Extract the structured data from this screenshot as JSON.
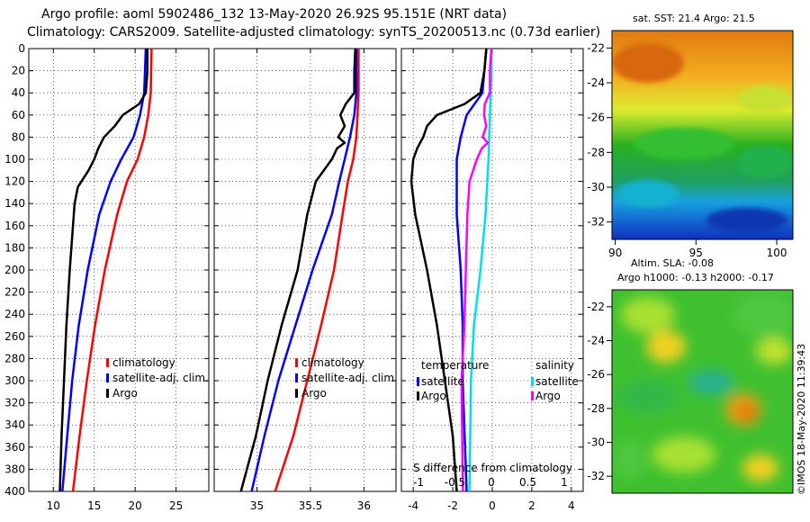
{
  "header": {
    "line1": "Argo profile: aoml 5902486_132 13-May-2020 26.92S 95.151E (NRT data)",
    "line2": "Climatology: CARS2009. Satellite-adjusted climatology: synTS_20200513.nc (0.73d earlier)"
  },
  "colors": {
    "climatology": "#ff0000",
    "satellite": "#0000ff",
    "argo": "#000000",
    "sal_satellite": "#00e0e0",
    "sal_argo": "#ff00ff"
  },
  "chart_data": [
    {
      "type": "line",
      "name": "temperature-profile",
      "xlim": [
        7,
        29
      ],
      "ylim": [
        0,
        400
      ],
      "y_inverted": true,
      "xticks": [
        10,
        15,
        20,
        25
      ],
      "yticks": [
        0,
        20,
        40,
        60,
        80,
        100,
        120,
        140,
        160,
        180,
        200,
        220,
        240,
        260,
        280,
        300,
        320,
        340,
        360,
        380,
        400
      ],
      "legend": [
        "climatology",
        "satellite-adj. clim.",
        "Argo"
      ],
      "series": [
        {
          "name": "climatology",
          "color": "#ff0000",
          "depth": [
            0,
            40,
            60,
            80,
            100,
            120,
            150,
            200,
            250,
            300,
            350,
            400
          ],
          "values": [
            22,
            21.9,
            21.6,
            21.1,
            20.3,
            19.0,
            17.8,
            16.3,
            15.1,
            14.1,
            13.2,
            12.4
          ]
        },
        {
          "name": "satellite-adj. clim.",
          "color": "#0000ff",
          "depth": [
            0,
            20,
            40,
            60,
            70,
            80,
            100,
            120,
            150,
            200,
            250,
            300,
            350,
            400
          ],
          "values": [
            21.3,
            21.2,
            21.1,
            20.6,
            20.2,
            19.8,
            18.3,
            17.0,
            15.6,
            14.2,
            13.1,
            12.3,
            11.7,
            11.1
          ]
        },
        {
          "name": "Argo",
          "color": "#000000",
          "depth": [
            0,
            20,
            40,
            50,
            60,
            70,
            80,
            90,
            100,
            110,
            125,
            140,
            160,
            200,
            250,
            300,
            350,
            400
          ],
          "values": [
            21.5,
            21.5,
            21.3,
            20.5,
            18.5,
            17.5,
            16.2,
            15.5,
            15.0,
            14.3,
            13.0,
            12.6,
            12.4,
            12.0,
            11.6,
            11.3,
            11.0,
            10.8
          ]
        }
      ]
    },
    {
      "type": "line",
      "name": "salinity-profile",
      "xlim": [
        34.6,
        36.3
      ],
      "ylim": [
        0,
        400
      ],
      "y_inverted": true,
      "xticks": [
        35,
        35.5,
        36
      ],
      "xtick_labels": [
        "35",
        "35.5",
        "36"
      ],
      "legend": [
        "climatology",
        "satellite-adj. clim.",
        "Argo"
      ],
      "series": [
        {
          "name": "climatology",
          "color": "#ff0000",
          "depth": [
            0,
            40,
            80,
            100,
            120,
            150,
            200,
            250,
            300,
            350,
            400
          ],
          "values": [
            35.95,
            35.95,
            35.93,
            35.9,
            35.85,
            35.8,
            35.72,
            35.6,
            35.47,
            35.34,
            35.17
          ]
        },
        {
          "name": "satellite-adj. clim.",
          "color": "#0000ff",
          "depth": [
            0,
            40,
            60,
            80,
            100,
            120,
            150,
            200,
            250,
            300,
            350,
            400
          ],
          "values": [
            35.93,
            35.93,
            35.91,
            35.87,
            35.82,
            35.77,
            35.7,
            35.52,
            35.36,
            35.2,
            35.07,
            34.95
          ]
        },
        {
          "name": "Argo",
          "color": "#000000",
          "depth": [
            0,
            20,
            40,
            50,
            60,
            70,
            80,
            85,
            90,
            100,
            120,
            150,
            200,
            250,
            300,
            350,
            400
          ],
          "values": [
            35.92,
            35.91,
            35.91,
            35.83,
            35.78,
            35.82,
            35.76,
            35.82,
            35.75,
            35.7,
            35.55,
            35.47,
            35.38,
            35.23,
            35.1,
            34.99,
            34.85
          ]
        }
      ]
    },
    {
      "type": "line",
      "name": "difference-from-climatology",
      "xlim": [
        -4.6,
        4.6
      ],
      "ylim": [
        0,
        400
      ],
      "y_inverted": true,
      "xticks": [
        -4,
        -2,
        0,
        2,
        4
      ],
      "secondary_xticks": [
        -1,
        -0.5,
        0,
        0.5,
        1
      ],
      "secondary_xtick_labels": [
        "-1",
        "-0.5",
        "0",
        "0.5",
        "1"
      ],
      "secondary_xlabel": "S difference from climatology",
      "legend_temperature_title": "temperature",
      "legend_salinity_title": "salinity",
      "series": [
        {
          "name": "temperature satellite",
          "color": "#0000ff",
          "depth": [
            0,
            20,
            40,
            60,
            80,
            100,
            150,
            200,
            250,
            300,
            350,
            400
          ],
          "values": [
            -0.3,
            -0.4,
            -0.5,
            -1.3,
            -1.6,
            -1.8,
            -1.8,
            -1.6,
            -1.5,
            -1.5,
            -1.4,
            -1.3
          ]
        },
        {
          "name": "temperature Argo",
          "color": "#000000",
          "depth": [
            0,
            20,
            40,
            50,
            60,
            70,
            80,
            90,
            100,
            120,
            150,
            200,
            250,
            300,
            350,
            400
          ],
          "values": [
            -0.3,
            -0.4,
            -0.6,
            -1.4,
            -2.8,
            -3.3,
            -3.5,
            -3.8,
            -4.0,
            -4.1,
            -3.9,
            -3.3,
            -2.8,
            -2.4,
            -2.0,
            -1.8
          ]
        },
        {
          "name": "salinity satellite",
          "color": "#00e0e0",
          "depth": [
            0,
            20,
            40,
            60,
            80,
            100,
            150,
            200,
            250,
            300,
            350,
            400
          ],
          "values": [
            0.0,
            0.0,
            -0.01,
            -0.02,
            -0.03,
            -0.04,
            -0.08,
            -0.15,
            -0.24,
            -0.28,
            -0.29,
            -0.3
          ]
        },
        {
          "name": "salinity Argo",
          "color": "#ff00ff",
          "depth": [
            0,
            20,
            40,
            50,
            60,
            70,
            80,
            85,
            90,
            100,
            120,
            150,
            200,
            250,
            300,
            350,
            400
          ],
          "values": [
            0.0,
            -0.02,
            -0.02,
            -0.09,
            -0.1,
            -0.07,
            -0.12,
            -0.05,
            -0.13,
            -0.2,
            -0.3,
            -0.33,
            -0.35,
            -0.37,
            -0.41,
            -0.4,
            -0.39
          ]
        }
      ]
    },
    {
      "type": "heatmap",
      "name": "sst-map",
      "title": "sat. SST: 21.4 Argo: 21.5",
      "xlim": [
        89.8,
        101
      ],
      "ylim": [
        -33,
        -21
      ],
      "xticks": [
        90,
        95,
        100
      ],
      "yticks": [
        -22,
        -24,
        -26,
        -28,
        -30,
        -32
      ],
      "ytick_labels": [
        "-22",
        "-24",
        "-26",
        "-28",
        "-30",
        "-32"
      ]
    },
    {
      "type": "heatmap",
      "name": "sla-map",
      "title_line1": "Altim. SLA: -0.08",
      "title_line2": "Argo h1000: -0.13 h2000: -0.17",
      "xlim": [
        89.8,
        101
      ],
      "ylim": [
        -33,
        -21
      ],
      "yticks": [
        -22,
        -24,
        -26,
        -28,
        -30,
        -32
      ],
      "ytick_labels": [
        "-22",
        "-24",
        "-26",
        "-28",
        "-30",
        "-32"
      ]
    }
  ],
  "credit": "©IMOS 18-May-2020 11:39:43"
}
